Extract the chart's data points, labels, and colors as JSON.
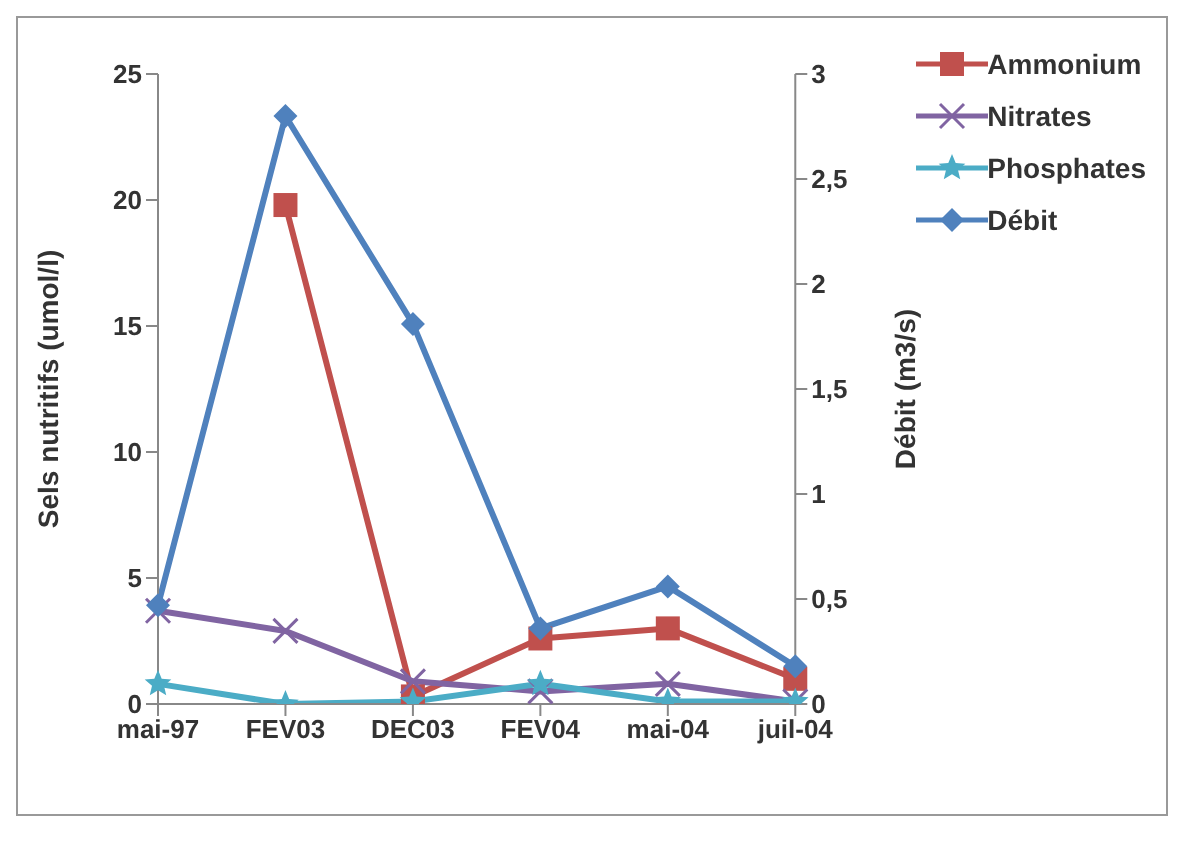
{
  "chart_data": {
    "type": "line",
    "categories": [
      "mai-97",
      "FEV03",
      "DEC03",
      "FEV04",
      "mai-04",
      "juil-04"
    ],
    "ylabel": "Sels nutritifs (umol/l)",
    "y2label": "Débit (m3/s)",
    "ylim": [
      0,
      25
    ],
    "yticks": [
      0,
      5,
      10,
      15,
      20,
      25
    ],
    "y2lim": [
      0,
      3
    ],
    "y2ticks": [
      {
        "value": 0,
        "label": "0"
      },
      {
        "value": 0.5,
        "label": "0,5"
      },
      {
        "value": 1,
        "label": "1"
      },
      {
        "value": 1.5,
        "label": "1,5"
      },
      {
        "value": 2,
        "label": "2"
      },
      {
        "value": 2.5,
        "label": "2,5"
      },
      {
        "value": 3,
        "label": "3"
      }
    ],
    "grid": false,
    "legend": "top right",
    "series": [
      {
        "name": "Ammonium",
        "color": "#c0504d",
        "marker": "square",
        "values": [
          null,
          19.8,
          0.3,
          2.6,
          3.0,
          1.0
        ]
      },
      {
        "name": "Nitrates",
        "color": "#8064a2",
        "marker": "cross",
        "values": [
          3.7,
          2.9,
          0.9,
          0.5,
          0.8,
          0.1
        ]
      },
      {
        "name": "Phosphates",
        "color": "#4bacc6",
        "marker": "star",
        "values": [
          0.8,
          0,
          0.1,
          0.8,
          0.1,
          0.1
        ]
      },
      {
        "name": "Débit",
        "color": "#4f81bd",
        "marker": "diamond",
        "axis": "y2",
        "values": [
          0.47,
          2.8,
          1.81,
          0.36,
          0.56,
          0.18
        ]
      }
    ]
  }
}
